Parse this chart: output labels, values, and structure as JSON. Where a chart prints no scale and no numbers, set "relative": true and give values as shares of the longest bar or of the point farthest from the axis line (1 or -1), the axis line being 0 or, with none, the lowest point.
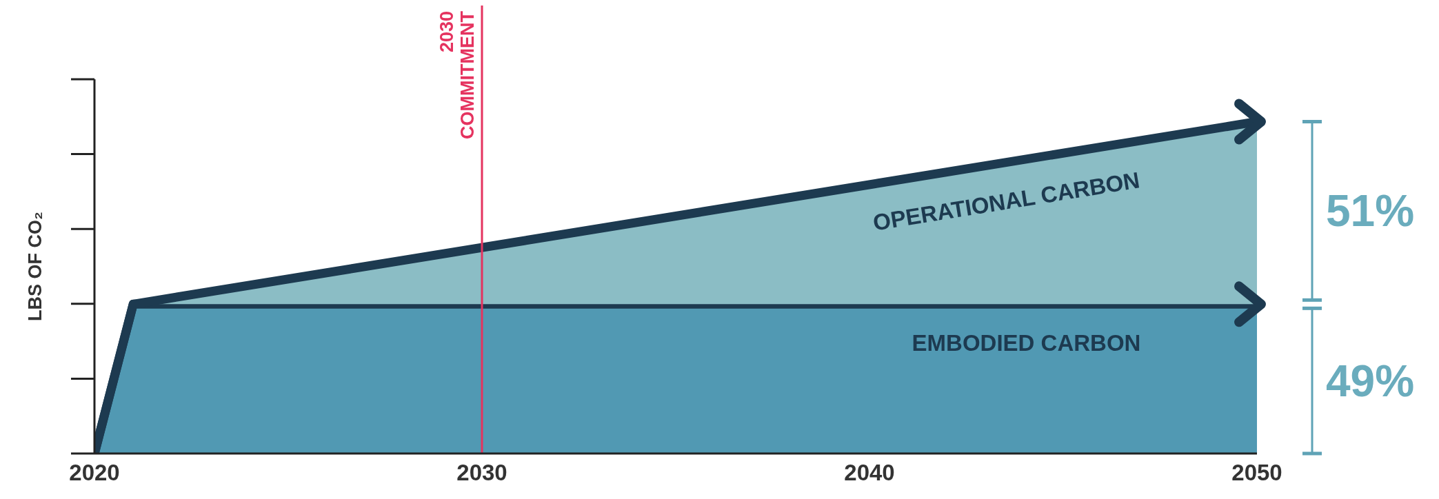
{
  "chart_data": {
    "type": "area",
    "stacked": true,
    "relative": true,
    "x": [
      2020,
      2021,
      2050
    ],
    "xlim": [
      2020,
      2050
    ],
    "xticks": [
      2020,
      2030,
      2040,
      2050
    ],
    "ylabel": "LBS OF CO₂",
    "series": [
      {
        "name": "EMBODIED CARBON",
        "color": "#5199b3",
        "values": [
          0,
          0.45,
          0.45
        ]
      },
      {
        "name": "OPERATIONAL CARBON",
        "color": "#8bbdc5",
        "values": [
          0,
          0,
          0.55
        ]
      }
    ],
    "ref_lines": [
      {
        "axis": "x",
        "value": 2030,
        "label": "2030 COMMITMENT",
        "color": "#e5335f"
      }
    ],
    "annotations": [
      "51%",
      "49%"
    ],
    "legend": false,
    "grid": false
  }
}
